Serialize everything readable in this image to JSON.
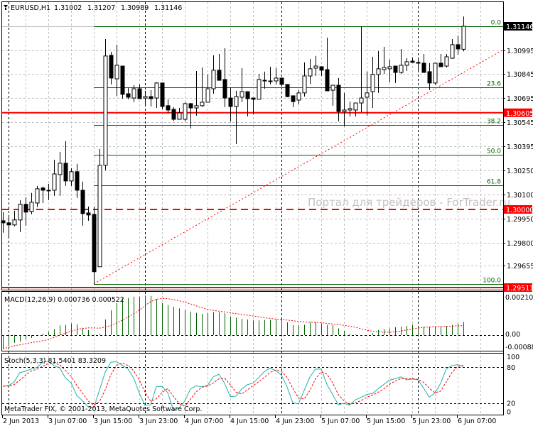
{
  "header": {
    "symbol": "EURUSD,H1",
    "open": "1.31002",
    "high": "1.31207",
    "low": "1.30989",
    "close": "1.31146"
  },
  "watermark": "Портал для трейдеров - ForTrader.ru",
  "copyright": "MetaTrader FIX, © 2001-2013, MetaQuotes Software Corp.",
  "colors": {
    "bull": "#ffffff",
    "bear": "#000000",
    "fib": "#006400",
    "hline": "#ff0000",
    "macd_hist": "#006400",
    "signal": "#ff0000",
    "stoch_main": "#20b2aa",
    "grid": "#c0c0c0"
  },
  "price_axis": {
    "labels": [
      "1.30995",
      "1.30845",
      "1.30695",
      "1.30545",
      "1.30395",
      "1.30250",
      "1.30100",
      "1.29950",
      "1.29800",
      "1.29655"
    ],
    "current_price": "1.31146",
    "hlines": [
      {
        "label": "1.30605",
        "price": 1.30605,
        "style": "solid"
      },
      {
        "label": "1.30000",
        "price": 1.3,
        "style": "dashed"
      },
      {
        "label": "1.29511",
        "price": 1.29511,
        "style": "solid"
      }
    ]
  },
  "fibonacci": {
    "high": 1.31146,
    "low": 1.29534,
    "start_bar": 16,
    "levels": [
      {
        "label": "0.0",
        "ratio": 0
      },
      {
        "label": "23.6",
        "ratio": 0.236
      },
      {
        "label": "38.2",
        "ratio": 0.382
      },
      {
        "label": "50.0",
        "ratio": 0.5
      },
      {
        "label": "61.8",
        "ratio": 0.618
      },
      {
        "label": "100.0",
        "ratio": 1
      }
    ]
  },
  "trendline": {
    "from": {
      "bar": 16,
      "price": 1.29534
    },
    "to": {
      "bar": 88,
      "price": 1.30999
    }
  },
  "time_axis": [
    "2 Jun 2013",
    "3 Jun 07:00",
    "3 Jun 15:00",
    "3 Jun 23:00",
    "4 Jun 07:00",
    "4 Jun 15:00",
    "4 Jun 23:00",
    "5 Jun 07:00",
    "5 Jun 15:00",
    "5 Jun 23:00",
    "6 Jun 07:00"
  ],
  "day_separator_bars": [
    1,
    25,
    49,
    73
  ],
  "macd": {
    "label": "MACD(12,26,9) 0.000736 0.000522",
    "axis": [
      "0.002105",
      "0.00",
      "-0.000882"
    ],
    "values": [
      -0.00077,
      -0.00061,
      -0.00043,
      -0.00037,
      -0.00023,
      -0.00016,
      0.0,
      8e-05,
      0.00018,
      0.00034,
      0.00054,
      0.00058,
      0.00065,
      0.00061,
      0.00041,
      0.00029,
      4e-05,
      7e-05,
      0.00088,
      0.0014,
      0.00181,
      0.00208,
      0.0021,
      0.00217,
      0.00217,
      0.00224,
      0.00221,
      0.00204,
      0.00181,
      0.0017,
      0.0016,
      0.00151,
      0.00143,
      0.00133,
      0.00126,
      0.0012,
      0.00126,
      0.00129,
      0.00129,
      0.00124,
      0.00106,
      0.00099,
      0.00092,
      0.00088,
      0.00083,
      0.00083,
      0.00086,
      0.00086,
      0.00088,
      0.00088,
      0.00072,
      0.00056,
      0.00056,
      0.00058,
      0.00072,
      0.00072,
      0.00065,
      0.00058,
      0.00056,
      0.00038,
      0.00024,
      7e-05,
      4e-05,
      0.0,
      0.0,
      0.00011,
      0.00029,
      0.00034,
      0.00038,
      0.00045,
      0.00048,
      0.00052,
      0.00058,
      0.00045,
      0.00048,
      0.00048,
      0.00048,
      0.00048,
      0.00052,
      0.00058,
      0.00065,
      0.00074
    ]
  },
  "stoch": {
    "label": "Stoch(5,3,3) 81.5401 83.3209",
    "axis": [
      "100",
      "80",
      "20",
      "0"
    ]
  },
  "candles": [
    [
      1.29929,
      1.29983,
      1.29854,
      1.29916
    ],
    [
      1.29916,
      1.29965,
      1.29823,
      1.29903
    ],
    [
      1.29903,
      1.29992,
      1.29894,
      1.29934
    ],
    [
      1.29934,
      1.30058,
      1.29858,
      1.30032
    ],
    [
      1.30032,
      1.30076,
      1.29898,
      1.29983
    ],
    [
      1.29987,
      1.30103,
      1.29969,
      1.30045
    ],
    [
      1.3004,
      1.30147,
      1.30014,
      1.30129
    ],
    [
      1.30134,
      1.30143,
      1.3004,
      1.3012
    ],
    [
      1.3012,
      1.3016,
      1.30058,
      1.3012
    ],
    [
      1.3012,
      1.30311,
      1.30085,
      1.30222
    ],
    [
      1.30218,
      1.3036,
      1.30085,
      1.30289
    ],
    [
      1.30289,
      1.30427,
      1.30147,
      1.30178
    ],
    [
      1.30178,
      1.30258,
      1.30147,
      1.30236
    ],
    [
      1.30236,
      1.30285,
      1.30072,
      1.3012
    ],
    [
      1.3012,
      1.30174,
      1.29898,
      1.29974
    ],
    [
      1.29978,
      1.30018,
      1.29929,
      1.29965
    ],
    [
      1.29969,
      1.30018,
      1.29534,
      1.2961
    ],
    [
      1.29641,
      1.30378,
      1.29641,
      1.30276
    ],
    [
      1.30276,
      1.31066,
      1.30245,
      1.3096
    ],
    [
      1.30964,
      1.30986,
      1.30782,
      1.30822
    ],
    [
      1.30817,
      1.31031,
      1.30711,
      1.30902
    ],
    [
      1.30897,
      1.30897,
      1.30693,
      1.3072
    ],
    [
      1.30724,
      1.3076,
      1.30689,
      1.30702
    ],
    [
      1.30697,
      1.30777,
      1.30671,
      1.30755
    ],
    [
      1.30755,
      1.30782,
      1.30693,
      1.30693
    ],
    [
      1.30697,
      1.30742,
      1.30653,
      1.30706
    ],
    [
      1.30706,
      1.30746,
      1.30644,
      1.30693
    ],
    [
      1.30697,
      1.30795,
      1.30635,
      1.30791
    ],
    [
      1.30791,
      1.30791,
      1.30626,
      1.30644
    ],
    [
      1.30649,
      1.30689,
      1.306,
      1.30622
    ],
    [
      1.30626,
      1.3064,
      1.30555,
      1.30564
    ],
    [
      1.30564,
      1.30635,
      1.30564,
      1.30604
    ],
    [
      1.30564,
      1.30671,
      1.30551,
      1.30662
    ],
    [
      1.30662,
      1.30666,
      1.30507,
      1.30635
    ],
    [
      1.30635,
      1.30866,
      1.30587,
      1.30649
    ],
    [
      1.30649,
      1.30888,
      1.3064,
      1.30671
    ],
    [
      1.30671,
      1.30844,
      1.30671,
      1.30755
    ],
    [
      1.30755,
      1.30964,
      1.30724,
      1.30871
    ],
    [
      1.30871,
      1.30973,
      1.30808,
      1.30808
    ],
    [
      1.30813,
      1.31008,
      1.3064,
      1.30697
    ],
    [
      1.30697,
      1.30764,
      1.30551,
      1.30644
    ],
    [
      1.30644,
      1.30742,
      1.30409,
      1.30706
    ],
    [
      1.30702,
      1.30884,
      1.30671,
      1.30737
    ],
    [
      1.30737,
      1.30737,
      1.30582,
      1.30693
    ],
    [
      1.30697,
      1.30697,
      1.30595,
      1.30689
    ],
    [
      1.30689,
      1.30848,
      1.30689,
      1.30813
    ],
    [
      1.30804,
      1.30862,
      1.30755,
      1.30808
    ],
    [
      1.30804,
      1.30893,
      1.30782,
      1.30804
    ],
    [
      1.30804,
      1.30884,
      1.30782,
      1.30822
    ],
    [
      1.30822,
      1.30822,
      1.30769,
      1.30782
    ],
    [
      1.30782,
      1.30782,
      1.30702,
      1.30706
    ],
    [
      1.30711,
      1.30711,
      1.3064,
      1.30675
    ],
    [
      1.30684,
      1.30746,
      1.30658,
      1.30729
    ],
    [
      1.30729,
      1.3092,
      1.30706,
      1.30835
    ],
    [
      1.30835,
      1.30942,
      1.30786,
      1.3088
    ],
    [
      1.30884,
      1.3096,
      1.30835,
      1.30897
    ],
    [
      1.30893,
      1.30893,
      1.30835,
      1.30871
    ],
    [
      1.30875,
      1.31075,
      1.30742,
      1.30742
    ],
    [
      1.30746,
      1.30777,
      1.30649,
      1.30777
    ],
    [
      1.30777,
      1.30822,
      1.30551,
      1.30613
    ],
    [
      1.30613,
      1.30729,
      1.3052,
      1.30622
    ],
    [
      1.30622,
      1.30675,
      1.30582,
      1.30631
    ],
    [
      1.30622,
      1.30666,
      1.30582,
      1.30666
    ],
    [
      1.30666,
      1.31146,
      1.30609,
      1.30697
    ],
    [
      1.30702,
      1.30862,
      1.30587,
      1.30729
    ],
    [
      1.30737,
      1.30955,
      1.30635,
      1.30844
    ],
    [
      1.30844,
      1.30991,
      1.30729,
      1.3088
    ],
    [
      1.30875,
      1.31017,
      1.30848,
      1.30888
    ],
    [
      1.3088,
      1.30937,
      1.30795,
      1.30893
    ],
    [
      1.30897,
      1.30897,
      1.30791,
      1.30857
    ],
    [
      1.30857,
      1.31004,
      1.30848,
      1.30902
    ],
    [
      1.30902,
      1.30946,
      1.30866,
      1.30924
    ],
    [
      1.30928,
      1.30951,
      1.3092,
      1.3092
    ],
    [
      1.3092,
      1.30942,
      1.30857,
      1.30915
    ],
    [
      1.30915,
      1.30973,
      1.30857,
      1.30857
    ],
    [
      1.30862,
      1.30915,
      1.30746,
      1.30791
    ],
    [
      1.30791,
      1.30915,
      1.30777,
      1.30915
    ],
    [
      1.30915,
      1.30973,
      1.30893,
      1.30893
    ],
    [
      1.30897,
      1.30973,
      1.30888,
      1.30955
    ],
    [
      1.30946,
      1.31066,
      1.30942,
      1.31031
    ],
    [
      1.31031,
      1.31088,
      1.30968,
      1.31004
    ],
    [
      1.31002,
      1.31207,
      1.30989,
      1.31146
    ]
  ]
}
